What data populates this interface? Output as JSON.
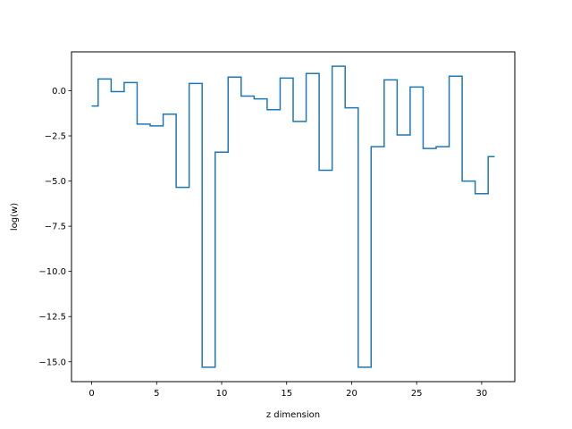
{
  "chart_data": {
    "type": "line",
    "drawstyle": "steps-mid",
    "title": "",
    "xlabel": "z dimension",
    "ylabel": "log(w)",
    "xlim": [
      -1.55,
      32.55
    ],
    "ylim": [
      -16.1,
      2.15
    ],
    "grid": false,
    "legend": "none",
    "x_ticks": [
      {
        "value": 0,
        "label": "0"
      },
      {
        "value": 5,
        "label": "5"
      },
      {
        "value": 10,
        "label": "10"
      },
      {
        "value": 15,
        "label": "15"
      },
      {
        "value": 20,
        "label": "20"
      },
      {
        "value": 25,
        "label": "25"
      },
      {
        "value": 30,
        "label": "30"
      }
    ],
    "y_ticks": [
      {
        "value": 0.0,
        "label": "0.0"
      },
      {
        "value": -2.5,
        "label": "−2.5"
      },
      {
        "value": -5.0,
        "label": "−5.0"
      },
      {
        "value": -7.5,
        "label": "−7.5"
      },
      {
        "value": -10.0,
        "label": "−10.0"
      },
      {
        "value": -12.5,
        "label": "−12.5"
      },
      {
        "value": -15.0,
        "label": "−15.0"
      }
    ],
    "series": [
      {
        "color": "#1f77b4",
        "x": [
          0,
          1,
          2,
          3,
          4,
          5,
          6,
          7,
          8,
          9,
          10,
          11,
          12,
          13,
          14,
          15,
          16,
          17,
          18,
          19,
          20,
          21,
          22,
          23,
          24,
          25,
          26,
          27,
          28,
          29,
          30,
          31
        ],
        "y": [
          -0.85,
          0.65,
          -0.05,
          0.45,
          -1.85,
          -1.95,
          -1.3,
          -5.35,
          0.4,
          -15.3,
          -3.4,
          0.75,
          -0.3,
          -0.45,
          -1.05,
          0.7,
          -1.7,
          0.95,
          -4.4,
          1.35,
          -0.95,
          -15.3,
          -3.1,
          0.6,
          -2.45,
          0.2,
          -3.2,
          -3.1,
          0.8,
          -5.0,
          -5.7,
          -3.65
        ]
      }
    ]
  }
}
